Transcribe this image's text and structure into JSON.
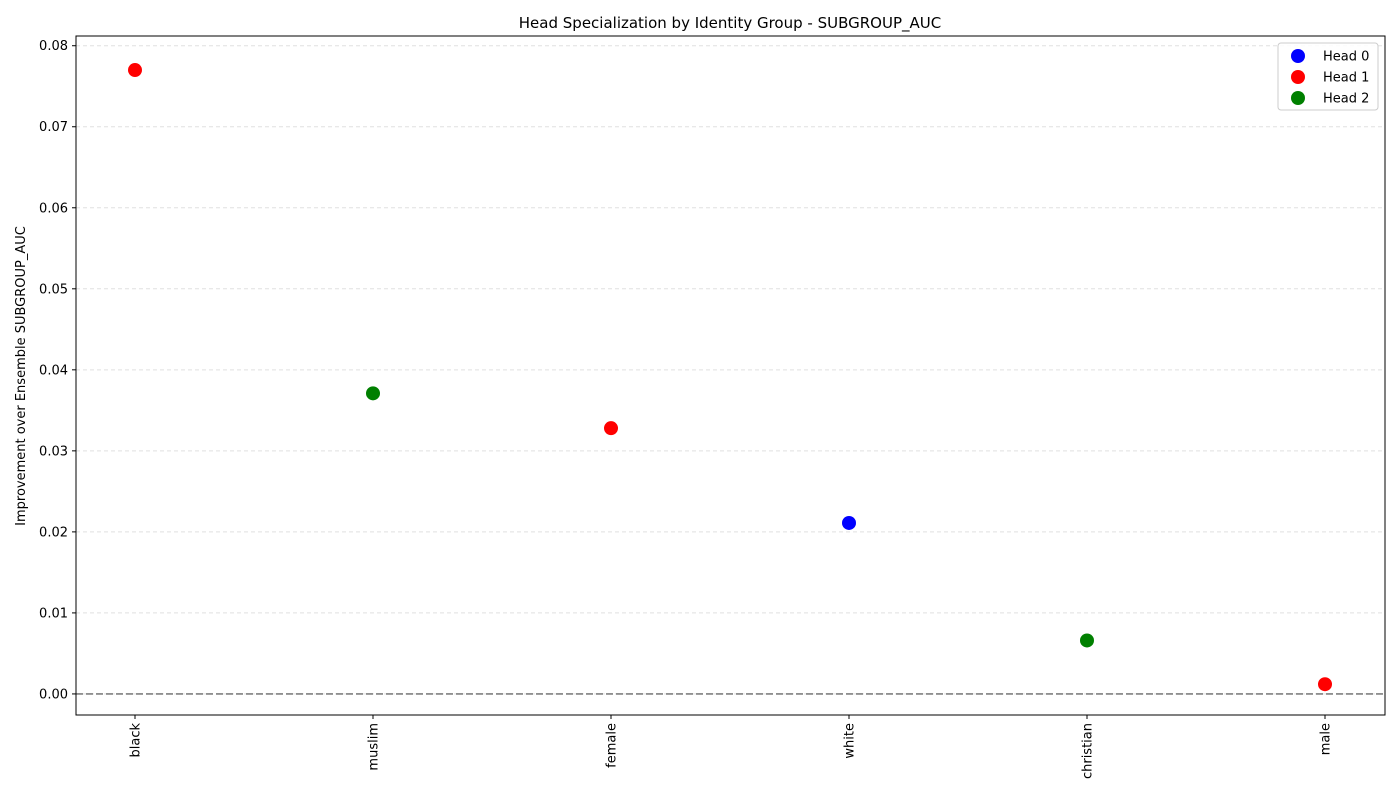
{
  "chart_data": {
    "type": "scatter",
    "title": "Head Specialization by Identity Group - SUBGROUP_AUC",
    "xlabel": "",
    "ylabel": "Improvement over Ensemble SUBGROUP_AUC",
    "categories": [
      "black",
      "muslim",
      "female",
      "white",
      "christian",
      "male"
    ],
    "ylim": [
      -0.0026,
      0.0812
    ],
    "yticks": [
      0.0,
      0.01,
      0.02,
      0.03,
      0.04,
      0.05,
      0.06,
      0.07,
      0.08
    ],
    "ytick_labels": [
      "0.00",
      "0.01",
      "0.02",
      "0.03",
      "0.04",
      "0.05",
      "0.06",
      "0.07",
      "0.08"
    ],
    "grid": "y-dashed",
    "reference_line": 0.0,
    "legend_position": "top-right",
    "series": [
      {
        "name": "Head 0",
        "color": "#0000ff",
        "points": [
          {
            "x": "white",
            "y": 0.0211
          }
        ]
      },
      {
        "name": "Head 1",
        "color": "#ff0000",
        "points": [
          {
            "x": "black",
            "y": 0.077
          },
          {
            "x": "female",
            "y": 0.0328
          },
          {
            "x": "male",
            "y": 0.0012
          }
        ]
      },
      {
        "name": "Head 2",
        "color": "#008000",
        "points": [
          {
            "x": "muslim",
            "y": 0.0371
          },
          {
            "x": "christian",
            "y": 0.0066
          }
        ]
      }
    ]
  }
}
